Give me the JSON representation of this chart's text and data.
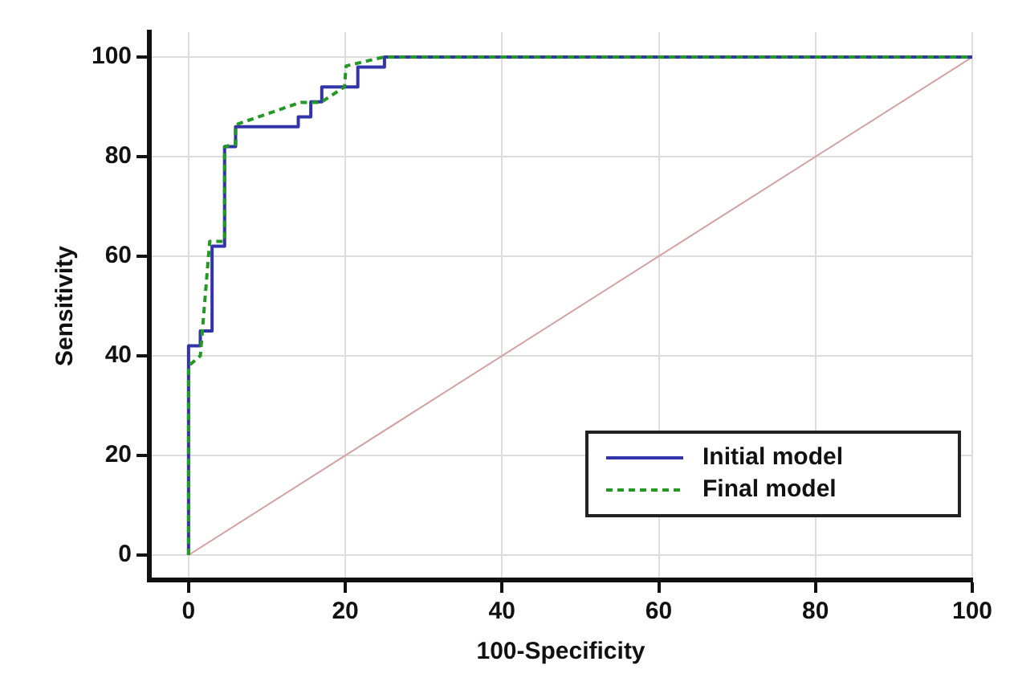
{
  "chart_data": {
    "type": "step",
    "xlabel": "100-Specificity",
    "ylabel": "Sensitivity",
    "xlim": [
      -5,
      100
    ],
    "ylim": [
      -5,
      105
    ],
    "xticks": [
      0,
      20,
      40,
      60,
      80,
      100
    ],
    "yticks": [
      0,
      20,
      40,
      60,
      80,
      100
    ],
    "grid": true,
    "legend": "bottom right",
    "series": [
      {
        "color": "#d4a0a0",
        "line_style": "solid",
        "type": "line",
        "x": [
          0,
          100
        ],
        "values": [
          0,
          100
        ]
      },
      {
        "name": "Initial model",
        "color": "#3333aa",
        "line_style": "solid",
        "x": [
          0,
          0,
          1.5,
          1.5,
          3,
          3,
          4.6,
          4.6,
          6,
          6,
          14,
          14,
          15.6,
          15.6,
          17,
          17,
          21.6,
          21.6,
          25,
          25,
          100
        ],
        "values": [
          0,
          42,
          42,
          45,
          45,
          62,
          62,
          82,
          82,
          86,
          86,
          88,
          88,
          91,
          91,
          94,
          94,
          98,
          98,
          100,
          100
        ]
      },
      {
        "name": "Final model",
        "color": "#229922",
        "line_style": "dashed",
        "type": "line",
        "x": [
          0,
          0,
          1.5,
          2.7,
          4.6,
          4.6,
          6,
          6,
          14.3,
          16.9,
          19.9,
          20.1,
          24.9,
          100
        ],
        "values": [
          0,
          38,
          40,
          63,
          63,
          82,
          82.5,
          86.4,
          90.9,
          90.9,
          94,
          98.2,
          100,
          100
        ]
      }
    ]
  }
}
